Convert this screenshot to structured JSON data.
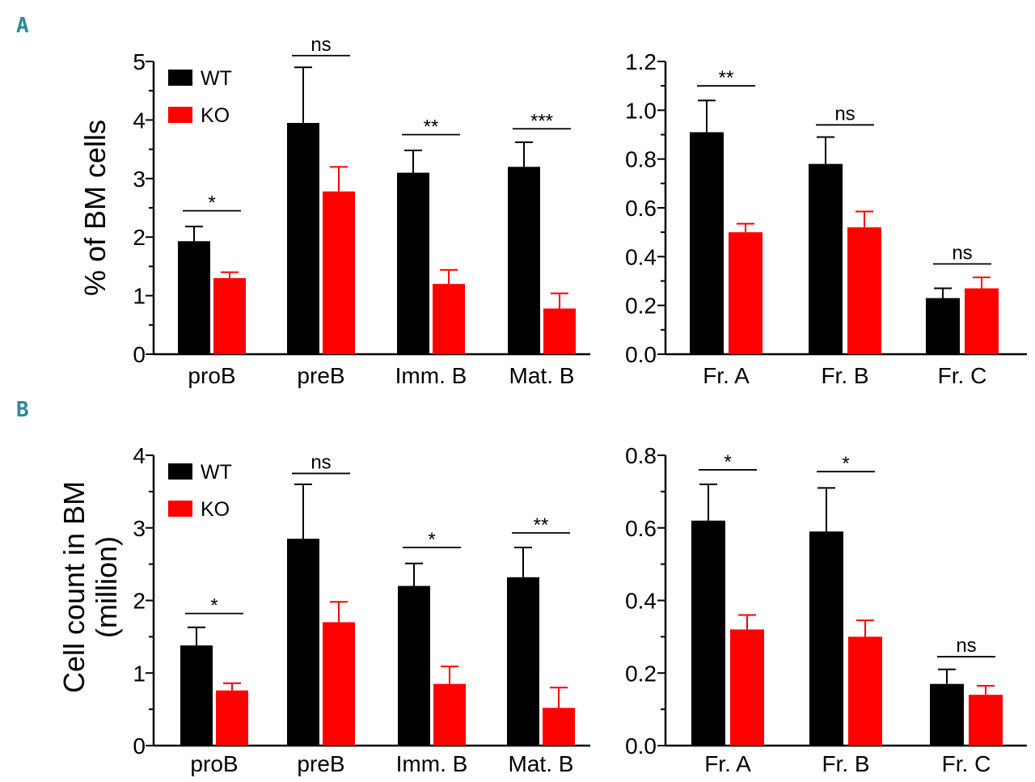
{
  "colors": {
    "wt": "#000000",
    "ko": "#ff0000",
    "panel_letter": "#2a8a9a"
  },
  "panels": [
    {
      "letter": "A"
    },
    {
      "letter": "B"
    }
  ],
  "chart_data": [
    {
      "type": "bar",
      "panel": "A",
      "ylabel": "% of BM cells",
      "ylim": [
        0,
        5
      ],
      "yticks": [
        "0",
        "1",
        "2",
        "3",
        "4",
        "5"
      ],
      "yticks_values": [
        0,
        1,
        2,
        3,
        4,
        5
      ],
      "minor_step": 0.5,
      "categories": [
        "proB",
        "preB",
        "Imm. B",
        "Mat. B"
      ],
      "legend": [
        "WT",
        "KO"
      ],
      "legend_position": "top-left",
      "series": [
        {
          "name": "WT",
          "values": [
            1.93,
            3.95,
            3.1,
            3.2
          ],
          "errors": [
            0.25,
            0.95,
            0.38,
            0.42
          ]
        },
        {
          "name": "KO",
          "values": [
            1.3,
            2.78,
            1.2,
            0.78
          ],
          "errors": [
            0.1,
            0.42,
            0.24,
            0.26
          ]
        }
      ],
      "significance": [
        "*",
        "ns",
        "**",
        "***"
      ],
      "significance_level": [
        2.45,
        5.1,
        3.75,
        3.85
      ]
    },
    {
      "type": "bar",
      "panel": "A",
      "ylabel": "",
      "ylim": [
        0,
        1.2
      ],
      "yticks": [
        "0.0",
        "0.2",
        "0.4",
        "0.6",
        "0.8",
        "1.0",
        "1.2"
      ],
      "yticks_values": [
        0,
        0.2,
        0.4,
        0.6,
        0.8,
        1.0,
        1.2
      ],
      "minor_step": 0.1,
      "categories": [
        "Fr. A",
        "Fr. B",
        "Fr. C"
      ],
      "legend": [],
      "series": [
        {
          "name": "WT",
          "values": [
            0.91,
            0.78,
            0.23
          ],
          "errors": [
            0.13,
            0.11,
            0.04
          ]
        },
        {
          "name": "KO",
          "values": [
            0.5,
            0.52,
            0.27
          ],
          "errors": [
            0.035,
            0.065,
            0.045
          ]
        }
      ],
      "significance": [
        "**",
        "ns",
        "ns"
      ],
      "significance_level": [
        1.1,
        0.94,
        0.37
      ]
    },
    {
      "type": "bar",
      "panel": "B",
      "ylabel": "Cell count in BM",
      "ylabel2": "(million)",
      "ylim": [
        0,
        4
      ],
      "yticks": [
        "0",
        "1",
        "2",
        "3",
        "4"
      ],
      "yticks_values": [
        0,
        1,
        2,
        3,
        4
      ],
      "minor_step": 0.5,
      "categories": [
        "proB",
        "preB",
        "Imm. B",
        "Mat. B"
      ],
      "legend": [
        "WT",
        "KO"
      ],
      "legend_position": "top-left",
      "series": [
        {
          "name": "WT",
          "values": [
            1.38,
            2.85,
            2.2,
            2.32
          ],
          "errors": [
            0.25,
            0.75,
            0.31,
            0.41
          ]
        },
        {
          "name": "KO",
          "values": [
            0.76,
            1.7,
            0.85,
            0.52
          ],
          "errors": [
            0.1,
            0.28,
            0.24,
            0.28
          ]
        }
      ],
      "significance": [
        "*",
        "ns",
        "*",
        "**"
      ],
      "significance_level": [
        1.82,
        3.75,
        2.73,
        2.93
      ]
    },
    {
      "type": "bar",
      "panel": "B",
      "ylabel": "",
      "ylim": [
        0,
        0.8
      ],
      "yticks": [
        "0.0",
        "0.2",
        "0.4",
        "0.6",
        "0.8"
      ],
      "yticks_values": [
        0,
        0.2,
        0.4,
        0.6,
        0.8
      ],
      "minor_step": 0.1,
      "categories": [
        "Fr. A",
        "Fr. B",
        "Fr. C"
      ],
      "legend": [],
      "series": [
        {
          "name": "WT",
          "values": [
            0.62,
            0.59,
            0.17
          ],
          "errors": [
            0.1,
            0.12,
            0.04
          ]
        },
        {
          "name": "KO",
          "values": [
            0.32,
            0.3,
            0.14
          ],
          "errors": [
            0.04,
            0.045,
            0.025
          ]
        }
      ],
      "significance": [
        "*",
        "*",
        "ns"
      ],
      "significance_level": [
        0.76,
        0.755,
        0.245
      ]
    }
  ]
}
